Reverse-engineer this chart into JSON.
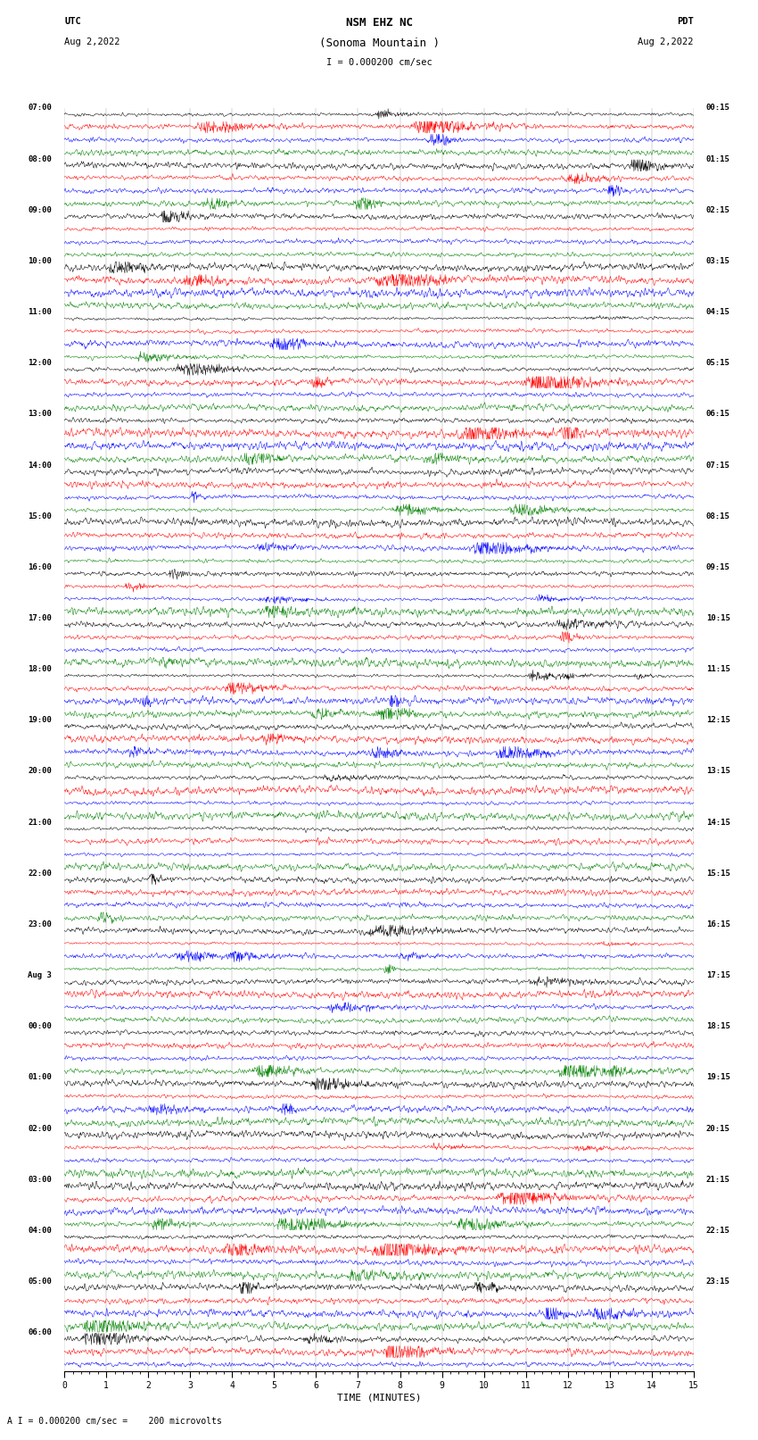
{
  "title_line1": "NSM EHZ NC",
  "title_line2": "(Sonoma Mountain )",
  "scale_bar_text": "I = 0.000200 cm/sec",
  "utc_label": "UTC",
  "utc_date": "Aug 2,2022",
  "pdt_label": "PDT",
  "pdt_date": "Aug 2,2022",
  "xlabel": "TIME (MINUTES)",
  "bottom_label": "A I = 0.000200 cm/sec =    200 microvolts",
  "left_times": [
    [
      "07:00",
      0
    ],
    [
      "08:00",
      4
    ],
    [
      "09:00",
      8
    ],
    [
      "10:00",
      12
    ],
    [
      "11:00",
      16
    ],
    [
      "12:00",
      20
    ],
    [
      "13:00",
      24
    ],
    [
      "14:00",
      28
    ],
    [
      "15:00",
      32
    ],
    [
      "16:00",
      36
    ],
    [
      "17:00",
      40
    ],
    [
      "18:00",
      44
    ],
    [
      "19:00",
      48
    ],
    [
      "20:00",
      52
    ],
    [
      "21:00",
      56
    ],
    [
      "22:00",
      60
    ],
    [
      "23:00",
      64
    ],
    [
      "Aug 3",
      68
    ],
    [
      "00:00",
      72
    ],
    [
      "01:00",
      76
    ],
    [
      "02:00",
      80
    ],
    [
      "03:00",
      84
    ],
    [
      "04:00",
      88
    ],
    [
      "05:00",
      92
    ],
    [
      "06:00",
      96
    ]
  ],
  "right_times": [
    [
      "00:15",
      0
    ],
    [
      "01:15",
      4
    ],
    [
      "02:15",
      8
    ],
    [
      "03:15",
      12
    ],
    [
      "04:15",
      16
    ],
    [
      "05:15",
      20
    ],
    [
      "06:15",
      24
    ],
    [
      "07:15",
      28
    ],
    [
      "08:15",
      32
    ],
    [
      "09:15",
      36
    ],
    [
      "10:15",
      40
    ],
    [
      "11:15",
      44
    ],
    [
      "12:15",
      48
    ],
    [
      "13:15",
      52
    ],
    [
      "14:15",
      56
    ],
    [
      "15:15",
      60
    ],
    [
      "16:15",
      64
    ],
    [
      "17:15",
      68
    ],
    [
      "18:15",
      72
    ],
    [
      "19:15",
      76
    ],
    [
      "20:15",
      80
    ],
    [
      "21:15",
      84
    ],
    [
      "22:15",
      88
    ],
    [
      "23:15",
      92
    ]
  ],
  "trace_colors": [
    "black",
    "red",
    "blue",
    "green"
  ],
  "n_rows": 99,
  "n_cols": 1500,
  "x_ticks": [
    0,
    1,
    2,
    3,
    4,
    5,
    6,
    7,
    8,
    9,
    10,
    11,
    12,
    13,
    14,
    15
  ],
  "xlim": [
    0,
    15
  ],
  "bg_color": "white",
  "fig_width": 8.5,
  "fig_height": 16.13,
  "dpi": 100
}
